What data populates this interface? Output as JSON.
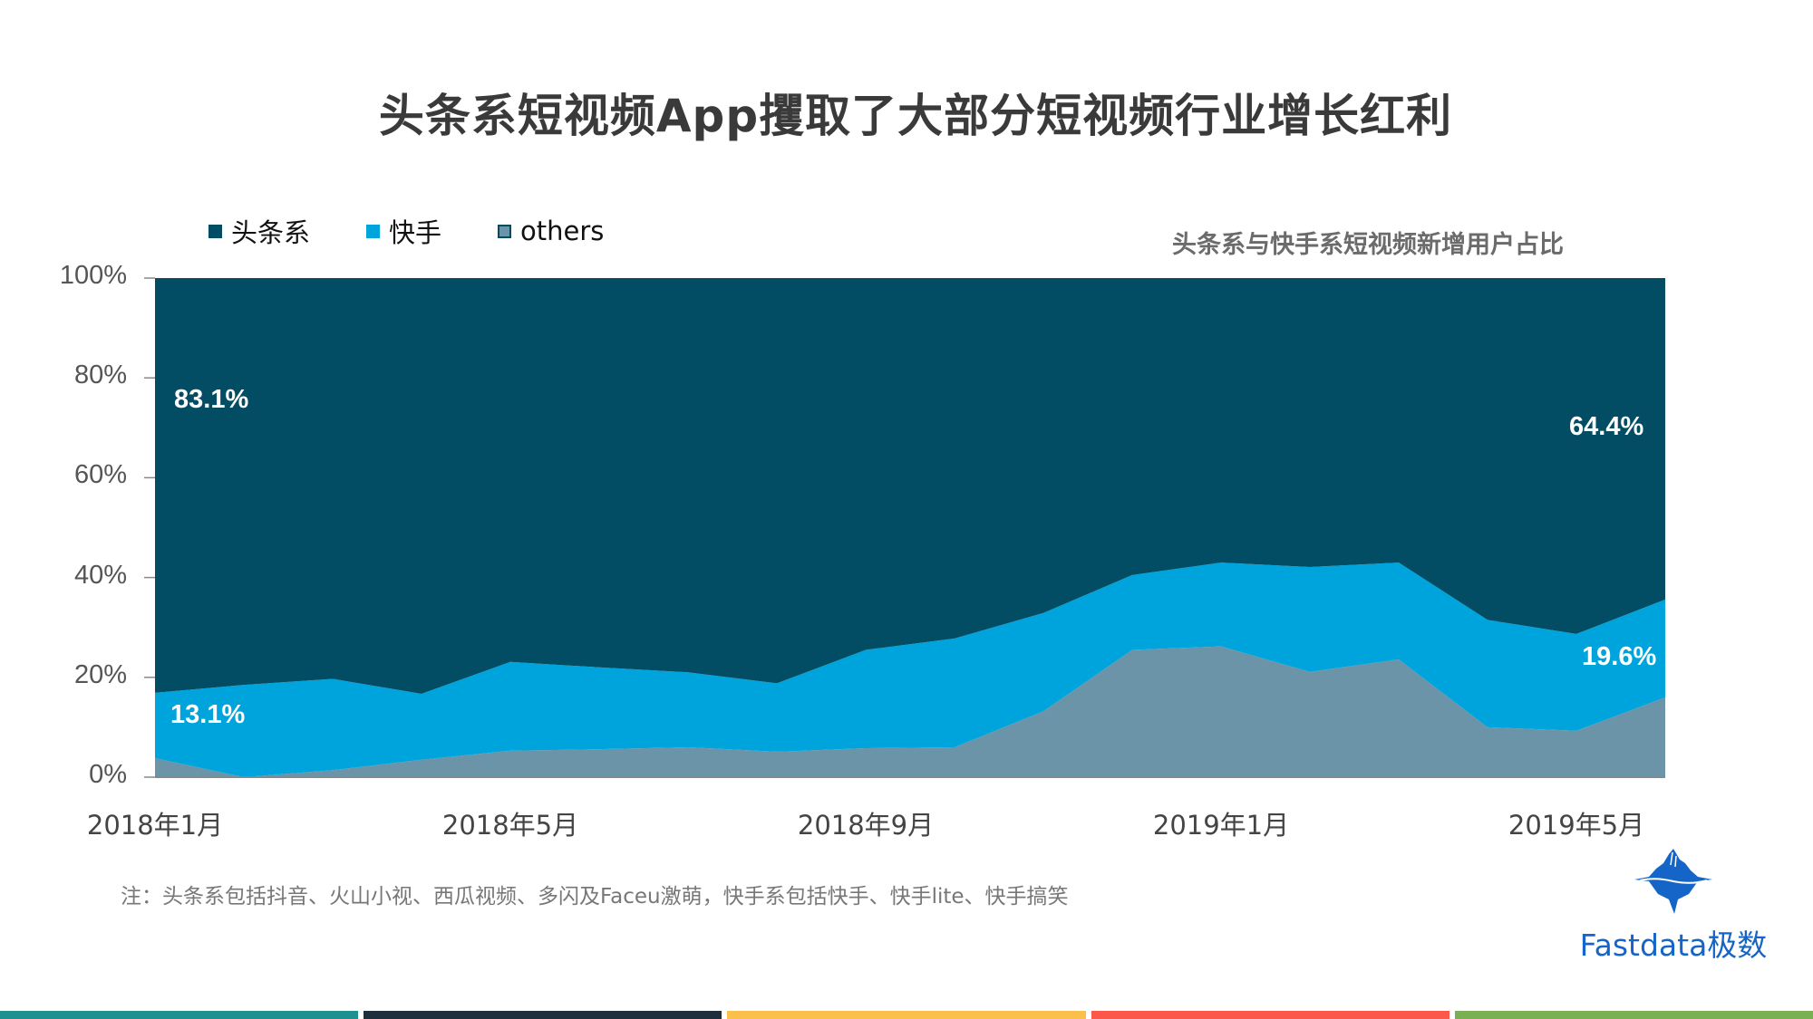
{
  "title": "头条系短视频App攫取了大部分短视频行业增长红利",
  "subtitle": "头条系与快手系短视频新增用户占比",
  "legend": [
    {
      "label": "头条系",
      "color": "#024d63"
    },
    {
      "label": "快手",
      "color": "#00a4dc"
    },
    {
      "label": "others",
      "color": "#6b94a8"
    }
  ],
  "y_ticks": [
    "100%",
    "80%",
    "60%",
    "40%",
    "20%",
    "0%"
  ],
  "x_ticks": [
    "2018年1月",
    "2018年5月",
    "2018年9月",
    "2019年1月",
    "2019年5月"
  ],
  "data_labels": {
    "toutiao_start": "83.1%",
    "kuaishou_start": "13.1%",
    "toutiao_end": "64.4%",
    "kuaishou_end": "19.6%"
  },
  "note": "注：头条系包括抖音、火山小视、西瓜视频、多闪及Faceu激萌，快手系包括快手、快手lite、快手搞笑",
  "logo": {
    "text": "Fastdata极数",
    "color": "#1565c8"
  },
  "footer_bar_colors": [
    "#1f9090",
    "#1d2f3d",
    "#fbbf4b",
    "#fc584a",
    "#79b054"
  ],
  "chart_data": {
    "type": "area",
    "stacked": true,
    "normalized": true,
    "title": "头条系短视频App攫取了大部分短视频行业增长红利",
    "subtitle": "头条系与快手系短视频新增用户占比",
    "xlabel": "",
    "ylabel": "",
    "ylim": [
      0,
      100
    ],
    "y_tick_labels": [
      "0%",
      "20%",
      "40%",
      "60%",
      "80%",
      "100%"
    ],
    "x": [
      "2018年1月",
      "2018年2月",
      "2018年3月",
      "2018年4月",
      "2018年5月",
      "2018年6月",
      "2018年7月",
      "2018年8月",
      "2018年9月",
      "2018年10月",
      "2018年11月",
      "2018年12月",
      "2019年1月",
      "2019年2月",
      "2019年3月",
      "2019年4月",
      "2019年5月",
      "2019年6月"
    ],
    "x_tick_labels": [
      "2018年1月",
      "2018年5月",
      "2018年9月",
      "2019年1月",
      "2019年5月"
    ],
    "legend_position": "top-left",
    "grid": false,
    "series": [
      {
        "name": "others",
        "color": "#6b94a8",
        "values": [
          3.8,
          0.0,
          1.4,
          3.5,
          5.3,
          5.6,
          6.0,
          5.1,
          5.8,
          6.0,
          13.2,
          25.5,
          26.2,
          21.1,
          23.6,
          10.0,
          9.3,
          16.0
        ]
      },
      {
        "name": "快手",
        "color": "#00a4dc",
        "values": [
          13.1,
          18.5,
          18.3,
          13.2,
          17.8,
          16.4,
          15.0,
          13.7,
          19.7,
          21.8,
          19.7,
          15.0,
          16.8,
          21.0,
          19.4,
          21.5,
          19.4,
          19.6
        ]
      },
      {
        "name": "头条系",
        "color": "#024d63",
        "values": [
          83.1,
          81.5,
          80.3,
          83.3,
          76.9,
          78.0,
          79.0,
          81.2,
          74.5,
          72.2,
          67.1,
          59.5,
          57.0,
          57.9,
          57.0,
          68.5,
          71.3,
          64.4
        ]
      }
    ],
    "annotations": [
      {
        "series": "头条系",
        "x": "2018年1月",
        "label": "83.1%"
      },
      {
        "series": "快手",
        "x": "2018年1月",
        "label": "13.1%"
      },
      {
        "series": "头条系",
        "x": "2019年6月",
        "label": "64.4%"
      },
      {
        "series": "快手",
        "x": "2019年6月",
        "label": "19.6%"
      }
    ]
  }
}
